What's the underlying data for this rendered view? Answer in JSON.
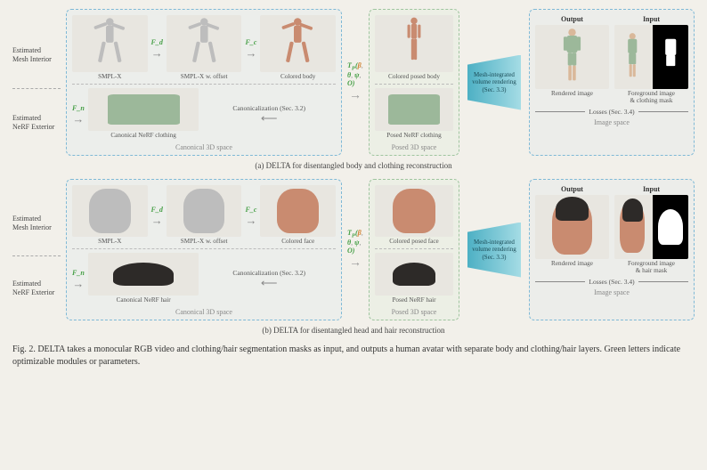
{
  "colors": {
    "background": "#f2f0ea",
    "box_blue": "#7fb9d6",
    "box_green": "#9fc59f",
    "trapezoid_start": "#4db0c4",
    "trapezoid_end": "#a5dce5",
    "optimizable_green": "#48a048",
    "param_orange": "#d08030",
    "body_gray": "#bdbdbd",
    "body_flesh": "#c98b70",
    "clothing_green": "#9cb89a",
    "hair_dark": "#2d2a28"
  },
  "panel_a": {
    "left_labels": {
      "top": "Estimated\nMesh Interior",
      "bottom": "Estimated\nNeRF Exterior"
    },
    "canonical_box_label": "Canonical 3D space",
    "posed_box_label": "Posed 3D space",
    "image_space_label": "Image space",
    "row1_stages": [
      {
        "cap": "SMPL-X",
        "type": "body-gray-tpose"
      },
      {
        "cap": "SMPL-X w. offset",
        "type": "body-gray-tpose"
      },
      {
        "cap": "Colored body",
        "type": "body-flesh-tpose"
      }
    ],
    "row1_arrows": [
      {
        "label": "F_d"
      },
      {
        "label": "F_c"
      }
    ],
    "row1_to_posed_label": "T_P(β, θ, ψ, O)",
    "row1_posed": {
      "cap": "Colored posed body",
      "type": "body-flesh-apose"
    },
    "row2_arrow_label": "F_n",
    "row2_stage": {
      "cap": "Canonical NeRF clothing",
      "type": "cloth-green"
    },
    "row2_back_label": "Canonicalization (Sec. 3.2)",
    "row2_posed": {
      "cap": "Posed NeRF clothing",
      "type": "cloth-green"
    },
    "trapezoid_text": "Mesh-integrated\nvolume rendering\n(Sec. 3.3)",
    "output_header": "Output",
    "input_header": "Input",
    "output_cap": "Rendered image",
    "input_cap": "Foreground image\n& clothing mask",
    "losses_label": "Losses (Sec. 3.4)",
    "sub_caption": "(a) DELTA for disentangled body and clothing reconstruction"
  },
  "panel_b": {
    "left_labels": {
      "top": "Estimated\nMesh Interior",
      "bottom": "Estimated\nNeRF Exterior"
    },
    "canonical_box_label": "Canonical 3D space",
    "posed_box_label": "Posed 3D space",
    "image_space_label": "Image space",
    "row1_stages": [
      {
        "cap": "SMPL-X",
        "type": "head-gray"
      },
      {
        "cap": "SMPL-X w. offset",
        "type": "head-gray"
      },
      {
        "cap": "Colored face",
        "type": "head-flesh"
      }
    ],
    "row1_arrows": [
      {
        "label": "F_d"
      },
      {
        "label": "F_c"
      }
    ],
    "row1_to_posed_label": "T_P(β, θ, ψ, O)",
    "row1_posed": {
      "cap": "Colored posed face",
      "type": "head-flesh"
    },
    "row2_arrow_label": "F_n",
    "row2_stage": {
      "cap": "Canonical NeRF hair",
      "type": "hair-dark"
    },
    "row2_back_label": "Canonicalization (Sec. 3.2)",
    "row2_posed": {
      "cap": "Posed NeRF hair",
      "type": "hair-dark"
    },
    "trapezoid_text": "Mesh-integrated\nvolume rendering\n(Sec. 3.3)",
    "output_header": "Output",
    "input_header": "Input",
    "output_cap": "Rendered image",
    "input_cap": "Foreground image\n& hair mask",
    "losses_label": "Losses (Sec. 3.4)",
    "sub_caption": "(b) DELTA for disentangled head and hair reconstruction"
  },
  "main_caption": "Fig. 2.  DELTA takes a monocular RGB video and clothing/hair segmentation masks as input, and outputs a human avatar with separate body and clothing/hair layers. Green letters indicate optimizable modules or parameters."
}
